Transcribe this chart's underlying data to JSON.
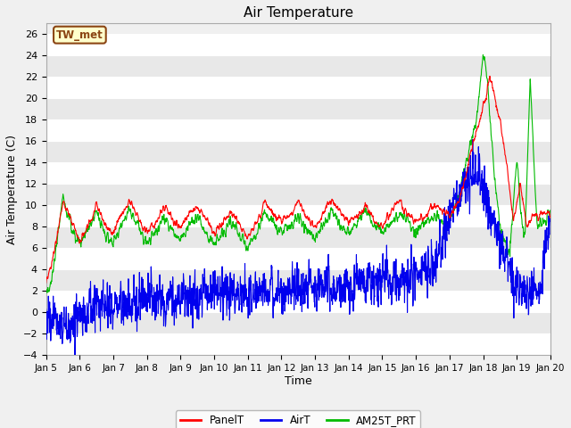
{
  "title": "Air Temperature",
  "ylabel": "Air Temperature (C)",
  "xlabel": "Time",
  "ylim": [
    -4,
    27
  ],
  "yticks": [
    -4,
    -2,
    0,
    2,
    4,
    6,
    8,
    10,
    12,
    14,
    16,
    18,
    20,
    22,
    24,
    26
  ],
  "bg_color": "#f0f0f0",
  "plot_bg_color": "#f0f0f0",
  "label_box_text": "TW_met",
  "label_box_bg": "#ffffcc",
  "label_box_border": "#8B4513",
  "line_colors": {
    "PanelT": "#ff0000",
    "AirT": "#0000ee",
    "AM25T_PRT": "#00bb00"
  },
  "legend_labels": [
    "PanelT",
    "AirT",
    "AM25T_PRT"
  ],
  "x_start_day": 5,
  "x_end_day": 20,
  "x_tick_days": [
    5,
    6,
    7,
    8,
    9,
    10,
    11,
    12,
    13,
    14,
    15,
    16,
    17,
    18,
    19,
    20
  ],
  "grid_color": "#ffffff",
  "stripe_color": "#e8e8e8"
}
